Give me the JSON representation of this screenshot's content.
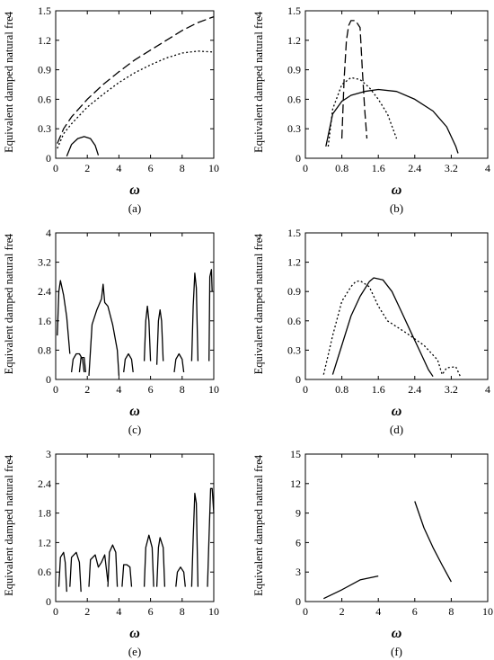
{
  "figure": {
    "ylabel": "Equivalent damped natural fre",
    "ylabel_suffix": "4",
    "xlabel": "ω"
  },
  "chart_data": [
    {
      "panel": "(a)",
      "type": "line",
      "xlim": [
        0,
        10
      ],
      "ylim": [
        0,
        1.5
      ],
      "xticks": [
        "0",
        "2",
        "4",
        "6",
        "8",
        "10"
      ],
      "yticks": [
        "0",
        "0.3",
        "0.6",
        "0.9",
        "1.2",
        "1.5"
      ],
      "series": [
        {
          "style": "dashed",
          "points": [
            [
              0.1,
              0.15
            ],
            [
              0.5,
              0.3
            ],
            [
              1,
              0.42
            ],
            [
              2,
              0.6
            ],
            [
              3,
              0.75
            ],
            [
              4,
              0.88
            ],
            [
              5,
              1.0
            ],
            [
              6,
              1.1
            ],
            [
              7,
              1.2
            ],
            [
              8,
              1.3
            ],
            [
              9,
              1.38
            ],
            [
              10,
              1.44
            ]
          ]
        },
        {
          "style": "dotted",
          "points": [
            [
              0.1,
              0.1
            ],
            [
              0.5,
              0.25
            ],
            [
              1,
              0.35
            ],
            [
              2,
              0.52
            ],
            [
              3,
              0.65
            ],
            [
              4,
              0.77
            ],
            [
              5,
              0.87
            ],
            [
              6,
              0.95
            ],
            [
              7,
              1.02
            ],
            [
              8,
              1.07
            ],
            [
              9,
              1.09
            ],
            [
              10,
              1.08
            ]
          ]
        },
        {
          "style": "solid",
          "points": [
            [
              0.7,
              0.02
            ],
            [
              1.0,
              0.14
            ],
            [
              1.4,
              0.2
            ],
            [
              1.8,
              0.22
            ],
            [
              2.2,
              0.2
            ],
            [
              2.5,
              0.13
            ],
            [
              2.7,
              0.03
            ]
          ]
        }
      ]
    },
    {
      "panel": "(b)",
      "type": "line",
      "xlim": [
        0,
        4
      ],
      "ylim": [
        0,
        1.5
      ],
      "xticks": [
        "0",
        "0.8",
        "1.6",
        "2.4",
        "3.2",
        "4"
      ],
      "yticks": [
        "0",
        "0.3",
        "0.6",
        "0.9",
        "1.2",
        "1.5"
      ],
      "series": [
        {
          "style": "dashed",
          "points": [
            [
              0.8,
              0.2
            ],
            [
              0.85,
              0.8
            ],
            [
              0.9,
              1.2
            ],
            [
              0.95,
              1.35
            ],
            [
              1.0,
              1.4
            ],
            [
              1.1,
              1.4
            ],
            [
              1.2,
              1.33
            ],
            [
              1.25,
              0.9
            ],
            [
              1.3,
              0.5
            ],
            [
              1.35,
              0.2
            ]
          ]
        },
        {
          "style": "dotted",
          "points": [
            [
              0.5,
              0.12
            ],
            [
              0.6,
              0.5
            ],
            [
              0.8,
              0.75
            ],
            [
              1.0,
              0.82
            ],
            [
              1.2,
              0.8
            ],
            [
              1.4,
              0.72
            ],
            [
              1.6,
              0.6
            ],
            [
              1.8,
              0.45
            ],
            [
              2.0,
              0.2
            ]
          ]
        },
        {
          "style": "solid",
          "points": [
            [
              0.45,
              0.12
            ],
            [
              0.6,
              0.45
            ],
            [
              0.8,
              0.58
            ],
            [
              1.0,
              0.64
            ],
            [
              1.3,
              0.68
            ],
            [
              1.6,
              0.7
            ],
            [
              2.0,
              0.68
            ],
            [
              2.4,
              0.6
            ],
            [
              2.8,
              0.48
            ],
            [
              3.1,
              0.32
            ],
            [
              3.3,
              0.12
            ],
            [
              3.35,
              0.05
            ]
          ]
        }
      ]
    },
    {
      "panel": "(c)",
      "type": "line",
      "xlim": [
        0,
        10
      ],
      "ylim": [
        0,
        4
      ],
      "xticks": [
        "0",
        "2",
        "4",
        "6",
        "8",
        "10"
      ],
      "yticks": [
        "0",
        "0.8",
        "1.6",
        "2.4",
        "3.2",
        "4"
      ],
      "series": [
        {
          "style": "solid",
          "points": [
            [
              0.1,
              1.2
            ],
            [
              0.2,
              2.4
            ],
            [
              0.3,
              2.7
            ],
            [
              0.5,
              2.3
            ],
            [
              0.7,
              1.7
            ],
            [
              0.9,
              0.7
            ]
          ]
        },
        {
          "style": "solid",
          "points": [
            [
              1.0,
              0.2
            ],
            [
              1.1,
              0.55
            ],
            [
              1.3,
              0.7
            ],
            [
              1.5,
              0.7
            ],
            [
              1.7,
              0.55
            ],
            [
              1.8,
              0.2
            ]
          ]
        },
        {
          "style": "solid",
          "points": [
            [
              1.5,
              0.2
            ],
            [
              1.6,
              0.6
            ],
            [
              1.8,
              0.6
            ],
            [
              1.9,
              0.2
            ]
          ]
        },
        {
          "style": "solid",
          "points": [
            [
              2.1,
              0.1
            ],
            [
              2.3,
              1.5
            ],
            [
              2.6,
              1.9
            ],
            [
              2.9,
              2.2
            ],
            [
              3.0,
              2.6
            ],
            [
              3.1,
              2.1
            ],
            [
              3.3,
              2.0
            ],
            [
              3.6,
              1.5
            ],
            [
              3.9,
              0.8
            ],
            [
              4.0,
              0.1
            ]
          ]
        },
        {
          "style": "solid",
          "points": [
            [
              4.3,
              0.2
            ],
            [
              4.4,
              0.55
            ],
            [
              4.6,
              0.7
            ],
            [
              4.8,
              0.55
            ],
            [
              4.9,
              0.2
            ]
          ]
        },
        {
          "style": "solid",
          "points": [
            [
              5.6,
              0.5
            ],
            [
              5.7,
              1.6
            ],
            [
              5.8,
              2.0
            ],
            [
              5.9,
              1.6
            ],
            [
              6.0,
              0.5
            ]
          ]
        },
        {
          "style": "solid",
          "points": [
            [
              6.4,
              0.4
            ],
            [
              6.5,
              1.6
            ],
            [
              6.6,
              1.9
            ],
            [
              6.7,
              1.6
            ],
            [
              6.8,
              0.5
            ]
          ]
        },
        {
          "style": "solid",
          "points": [
            [
              7.5,
              0.2
            ],
            [
              7.6,
              0.55
            ],
            [
              7.8,
              0.7
            ],
            [
              8.0,
              0.55
            ],
            [
              8.1,
              0.2
            ]
          ]
        },
        {
          "style": "solid",
          "points": [
            [
              8.6,
              0.5
            ],
            [
              8.7,
              2.0
            ],
            [
              8.8,
              2.9
            ],
            [
              8.9,
              2.5
            ],
            [
              9.0,
              0.5
            ]
          ]
        },
        {
          "style": "solid",
          "points": [
            [
              9.7,
              0.5
            ],
            [
              9.75,
              2.8
            ],
            [
              9.85,
              3.0
            ],
            [
              9.9,
              2.4
            ]
          ]
        }
      ]
    },
    {
      "panel": "(d)",
      "type": "line",
      "xlim": [
        0,
        4
      ],
      "ylim": [
        0,
        1.5
      ],
      "xticks": [
        "0",
        "0.8",
        "1.6",
        "2.4",
        "3.2",
        "4"
      ],
      "yticks": [
        "0",
        "0.3",
        "0.6",
        "0.9",
        "1.2",
        "1.5"
      ],
      "series": [
        {
          "style": "solid",
          "points": [
            [
              0.6,
              0.05
            ],
            [
              0.8,
              0.35
            ],
            [
              1.0,
              0.65
            ],
            [
              1.2,
              0.85
            ],
            [
              1.4,
              1.0
            ],
            [
              1.5,
              1.04
            ],
            [
              1.7,
              1.02
            ],
            [
              1.9,
              0.9
            ],
            [
              2.1,
              0.7
            ],
            [
              2.3,
              0.5
            ],
            [
              2.5,
              0.3
            ],
            [
              2.7,
              0.1
            ],
            [
              2.8,
              0.03
            ]
          ]
        },
        {
          "style": "dotted",
          "points": [
            [
              0.4,
              0.05
            ],
            [
              0.6,
              0.45
            ],
            [
              0.8,
              0.8
            ],
            [
              1.0,
              0.95
            ],
            [
              1.1,
              1.0
            ],
            [
              1.2,
              1.01
            ],
            [
              1.4,
              0.95
            ],
            [
              1.6,
              0.75
            ],
            [
              1.8,
              0.6
            ],
            [
              2.2,
              0.48
            ],
            [
              2.6,
              0.35
            ],
            [
              2.9,
              0.2
            ],
            [
              3.0,
              0.05
            ],
            [
              3.1,
              0.12
            ],
            [
              3.3,
              0.13
            ],
            [
              3.4,
              0.03
            ]
          ]
        }
      ]
    },
    {
      "panel": "(e)",
      "type": "line",
      "xlim": [
        0,
        10
      ],
      "ylim": [
        0,
        3
      ],
      "xticks": [
        "0",
        "2",
        "4",
        "6",
        "8",
        "10"
      ],
      "yticks": [
        "0",
        "0.6",
        "1.2",
        "1.8",
        "2.4",
        "3"
      ],
      "series": [
        {
          "style": "solid",
          "points": [
            [
              0.2,
              0.3
            ],
            [
              0.3,
              0.9
            ],
            [
              0.5,
              1.0
            ],
            [
              0.6,
              0.8
            ],
            [
              0.7,
              0.2
            ]
          ]
        },
        {
          "style": "solid",
          "points": [
            [
              0.9,
              0.3
            ],
            [
              1.0,
              0.9
            ],
            [
              1.3,
              1.0
            ],
            [
              1.5,
              0.8
            ],
            [
              1.6,
              0.2
            ]
          ]
        },
        {
          "style": "solid",
          "points": [
            [
              2.1,
              0.3
            ],
            [
              2.2,
              0.85
            ],
            [
              2.5,
              0.95
            ],
            [
              2.7,
              0.7
            ],
            [
              2.9,
              0.8
            ],
            [
              3.1,
              0.95
            ],
            [
              3.3,
              0.4
            ]
          ]
        },
        {
          "style": "solid",
          "points": [
            [
              3.3,
              0.3
            ],
            [
              3.4,
              1.0
            ],
            [
              3.6,
              1.15
            ],
            [
              3.8,
              1.0
            ],
            [
              3.9,
              0.3
            ]
          ]
        },
        {
          "style": "solid",
          "points": [
            [
              4.2,
              0.3
            ],
            [
              4.3,
              0.75
            ],
            [
              4.5,
              0.75
            ],
            [
              4.7,
              0.7
            ],
            [
              4.8,
              0.3
            ]
          ]
        },
        {
          "style": "solid",
          "points": [
            [
              5.6,
              0.3
            ],
            [
              5.7,
              1.1
            ],
            [
              5.9,
              1.35
            ],
            [
              6.1,
              1.1
            ],
            [
              6.2,
              0.3
            ]
          ]
        },
        {
          "style": "solid",
          "points": [
            [
              6.4,
              0.3
            ],
            [
              6.5,
              1.1
            ],
            [
              6.6,
              1.3
            ],
            [
              6.8,
              1.1
            ],
            [
              6.9,
              0.3
            ]
          ]
        },
        {
          "style": "solid",
          "points": [
            [
              7.6,
              0.3
            ],
            [
              7.7,
              0.6
            ],
            [
              7.9,
              0.7
            ],
            [
              8.1,
              0.6
            ],
            [
              8.2,
              0.3
            ]
          ]
        },
        {
          "style": "solid",
          "points": [
            [
              8.6,
              0.3
            ],
            [
              8.7,
              1.3
            ],
            [
              8.8,
              2.2
            ],
            [
              8.9,
              2.0
            ],
            [
              9.0,
              0.3
            ]
          ]
        },
        {
          "style": "solid",
          "points": [
            [
              9.6,
              0.3
            ],
            [
              9.7,
              1.3
            ],
            [
              9.8,
              2.3
            ],
            [
              9.9,
              2.3
            ],
            [
              10.0,
              1.8
            ]
          ]
        }
      ]
    },
    {
      "panel": "(f)",
      "type": "line",
      "xlim": [
        0,
        10
      ],
      "ylim": [
        0,
        15
      ],
      "xticks": [
        "0",
        "2",
        "4",
        "6",
        "8",
        "10"
      ],
      "yticks": [
        "0",
        "3",
        "6",
        "9",
        "12",
        "15"
      ],
      "series": [
        {
          "style": "solid",
          "points": [
            [
              1,
              0.3
            ],
            [
              2,
              1.2
            ],
            [
              3,
              2.2
            ],
            [
              4,
              2.6
            ]
          ]
        },
        {
          "style": "solid",
          "points": [
            [
              6,
              10.2
            ],
            [
              6.5,
              7.5
            ],
            [
              7,
              5.5
            ],
            [
              7.5,
              3.7
            ],
            [
              8,
              2.0
            ]
          ]
        }
      ]
    }
  ]
}
